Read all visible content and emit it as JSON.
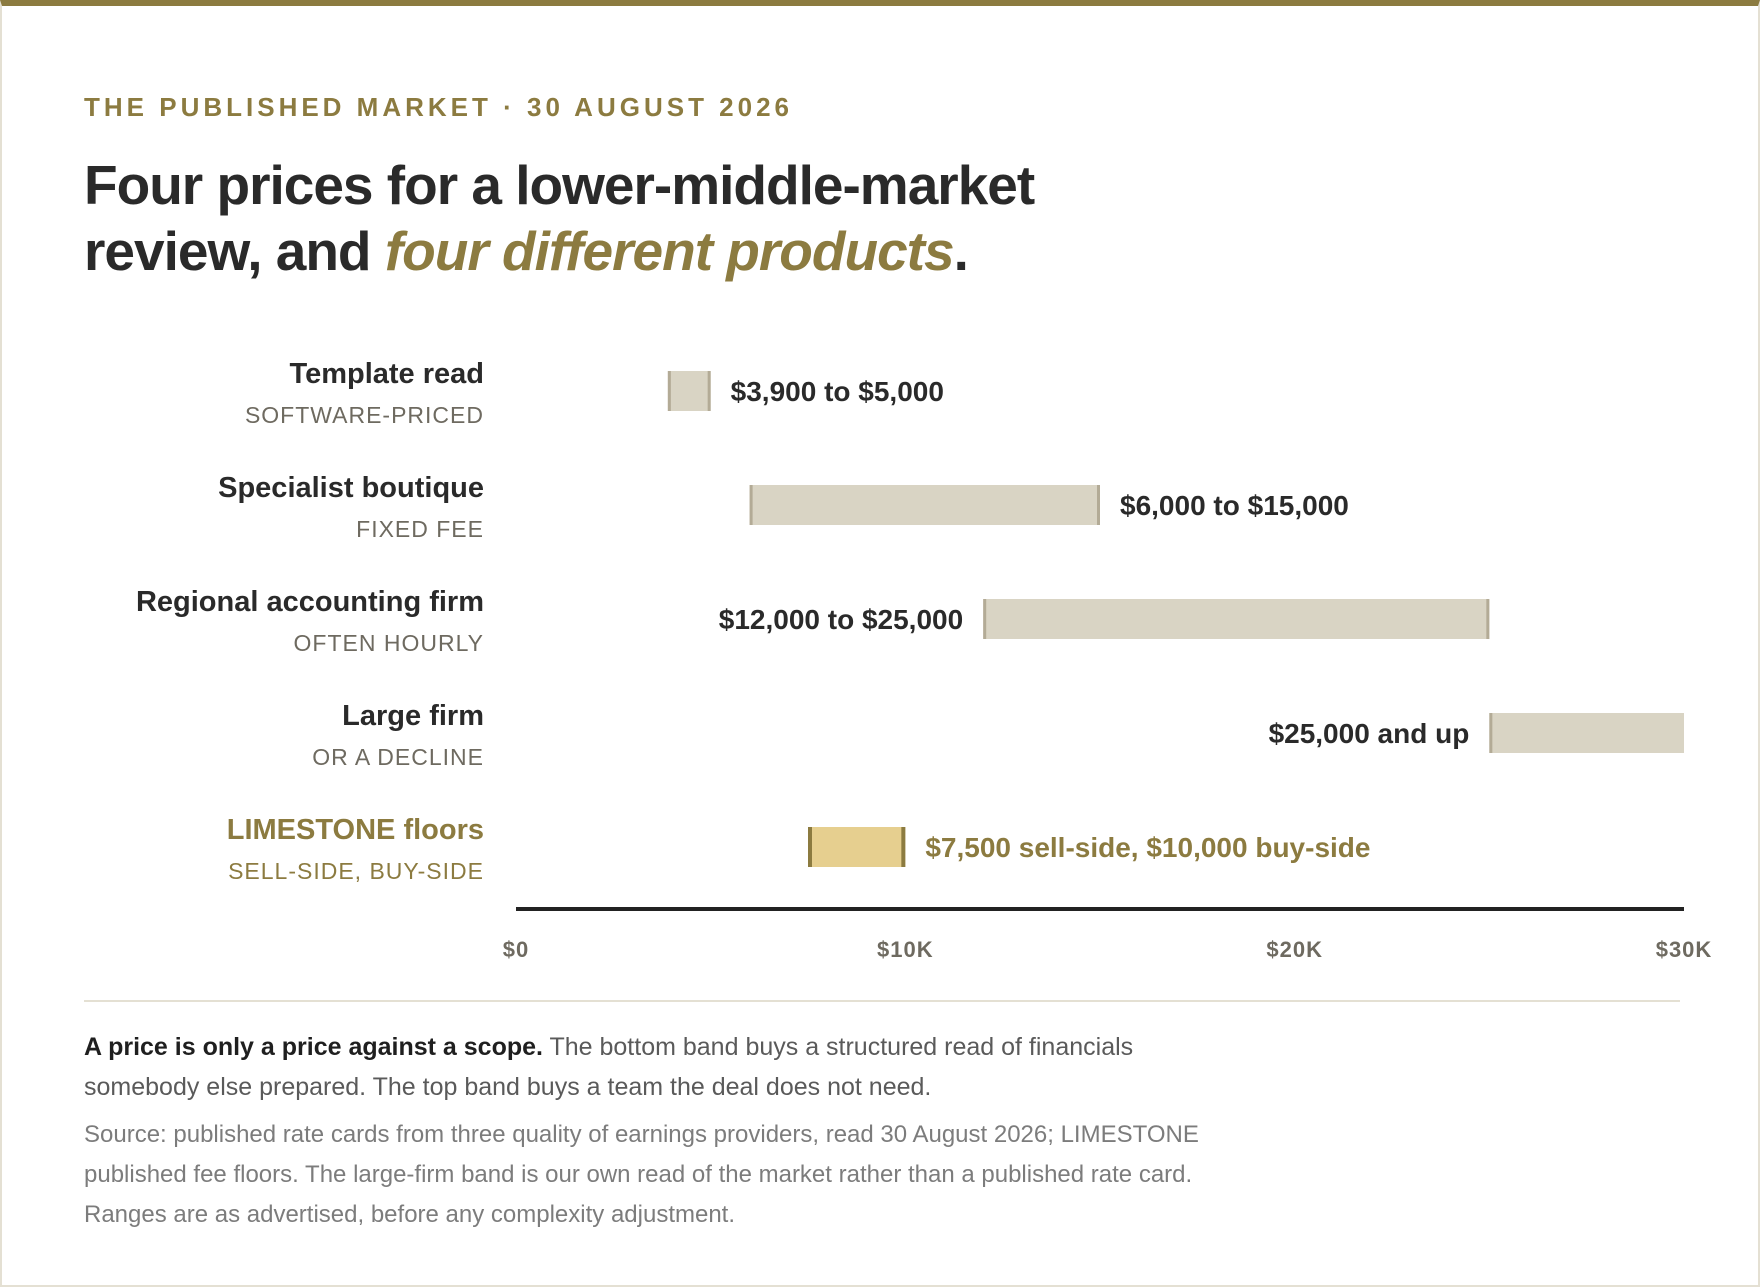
{
  "header": {
    "eyebrow": "THE PUBLISHED MARKET · 30 AUGUST 2026",
    "headline_part1": "Four prices for a lower-middle-market review, and ",
    "headline_accent": "four different products",
    "headline_end": "."
  },
  "colors": {
    "accent": "#8c7b40",
    "bar": "#d9d4c4",
    "bar_edge": "#b3ab96",
    "highlight_bar": "#e6cf8f",
    "highlight_edge": "#8c7b40",
    "text_dark": "#2a2a2a",
    "text_muted": "#6e6a60"
  },
  "chart_data": {
    "type": "bar",
    "orientation": "horizontal-range",
    "xlim": [
      0,
      30000
    ],
    "x_ticks": [
      0,
      10000,
      20000,
      30000
    ],
    "x_tick_labels": [
      "$0",
      "$10K",
      "$20K",
      "$30K"
    ],
    "grid": false,
    "series": [
      {
        "name": "Template read",
        "sublabel": "SOFTWARE-PRICED",
        "low": 3900,
        "high": 5000,
        "label": "$3,900 to $5,000",
        "label_side": "right",
        "highlight": false
      },
      {
        "name": "Specialist boutique",
        "sublabel": "FIXED FEE",
        "low": 6000,
        "high": 15000,
        "label": "$6,000 to $15,000",
        "label_side": "right",
        "highlight": false
      },
      {
        "name": "Regional accounting firm",
        "sublabel": "OFTEN HOURLY",
        "low": 12000,
        "high": 25000,
        "label": "$12,000 to $25,000",
        "label_side": "left",
        "highlight": false
      },
      {
        "name": "Large firm",
        "sublabel": "OR A DECLINE",
        "low": 25000,
        "high": 30000,
        "label": "$25,000 and up",
        "label_side": "left",
        "highlight": false
      },
      {
        "name": "LIMESTONE floors",
        "sublabel": "SELL-SIDE, BUY-SIDE",
        "low": 7500,
        "high": 10000,
        "label": "$7,500 sell-side, $10,000 buy-side",
        "label_side": "right",
        "highlight": true
      }
    ]
  },
  "footer": {
    "note_bold": "A price is only a price against a scope.",
    "note_rest": " The bottom band buys a structured read of financials somebody else prepared. The top band buys a team the deal does not need.",
    "source": "Source: published rate cards from three quality of earnings providers, read 30 August 2026; LIMESTONE published fee floors. The large-firm band is our own read of the market rather than a published rate card. Ranges are as advertised, before any complexity adjustment."
  }
}
